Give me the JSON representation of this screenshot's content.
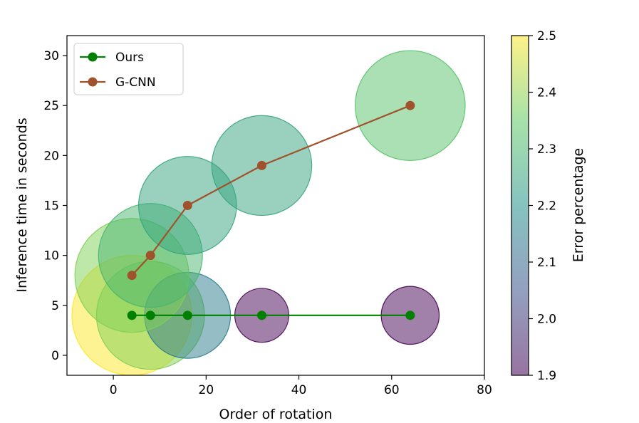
{
  "chart_data": {
    "type": "scatter",
    "xlabel": "Order of rotation",
    "ylabel": "Inference time in seconds",
    "xlim": [
      -10,
      80
    ],
    "ylim": [
      -2,
      32
    ],
    "xticks": [
      0,
      20,
      40,
      60,
      80
    ],
    "yticks": [
      0,
      5,
      10,
      15,
      20,
      25,
      30
    ],
    "legend_position": "top-left",
    "series": [
      {
        "name": "Ours",
        "color": "#008000",
        "x": [
          4,
          8,
          16,
          32,
          64
        ],
        "y": [
          4,
          4,
          4,
          4,
          4
        ],
        "error": [
          2.5,
          2.38,
          2.15,
          1.9,
          1.9
        ],
        "bubble_size": [
          6.0,
          5.4,
          4.3,
          2.7,
          2.9
        ]
      },
      {
        "name": "G-CNN",
        "color": "#a0522d",
        "x": [
          4,
          8,
          16,
          32,
          64
        ],
        "y": [
          8,
          10,
          15,
          19,
          25
        ],
        "error": [
          2.38,
          2.3,
          2.25,
          2.25,
          2.33
        ],
        "bubble_size": [
          5.7,
          5.2,
          4.9,
          5.0,
          5.5
        ]
      }
    ],
    "colorbar": {
      "label": "Error percentage",
      "min": 1.9,
      "max": 2.5,
      "ticks": [
        "1.9",
        "2.0",
        "2.1",
        "2.2",
        "2.3",
        "2.4",
        "2.5"
      ],
      "colormap": [
        "#440154",
        "#3b528b",
        "#21918c",
        "#5ec962",
        "#fde725"
      ]
    }
  }
}
